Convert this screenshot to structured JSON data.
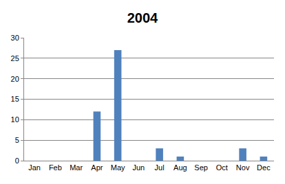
{
  "chart_data": {
    "type": "bar",
    "title": "2004",
    "categories": [
      "Jan",
      "Feb",
      "Mar",
      "Apr",
      "May",
      "Jun",
      "Jul",
      "Aug",
      "Sep",
      "Oct",
      "Nov",
      "Dec"
    ],
    "values": [
      0,
      0,
      0,
      12,
      27,
      0,
      3,
      1,
      0,
      0,
      3,
      1
    ],
    "color": "#4f81bd",
    "ylim": [
      0,
      30
    ],
    "yticks": [
      0,
      5,
      10,
      15,
      20,
      25,
      30
    ],
    "grid": true
  }
}
